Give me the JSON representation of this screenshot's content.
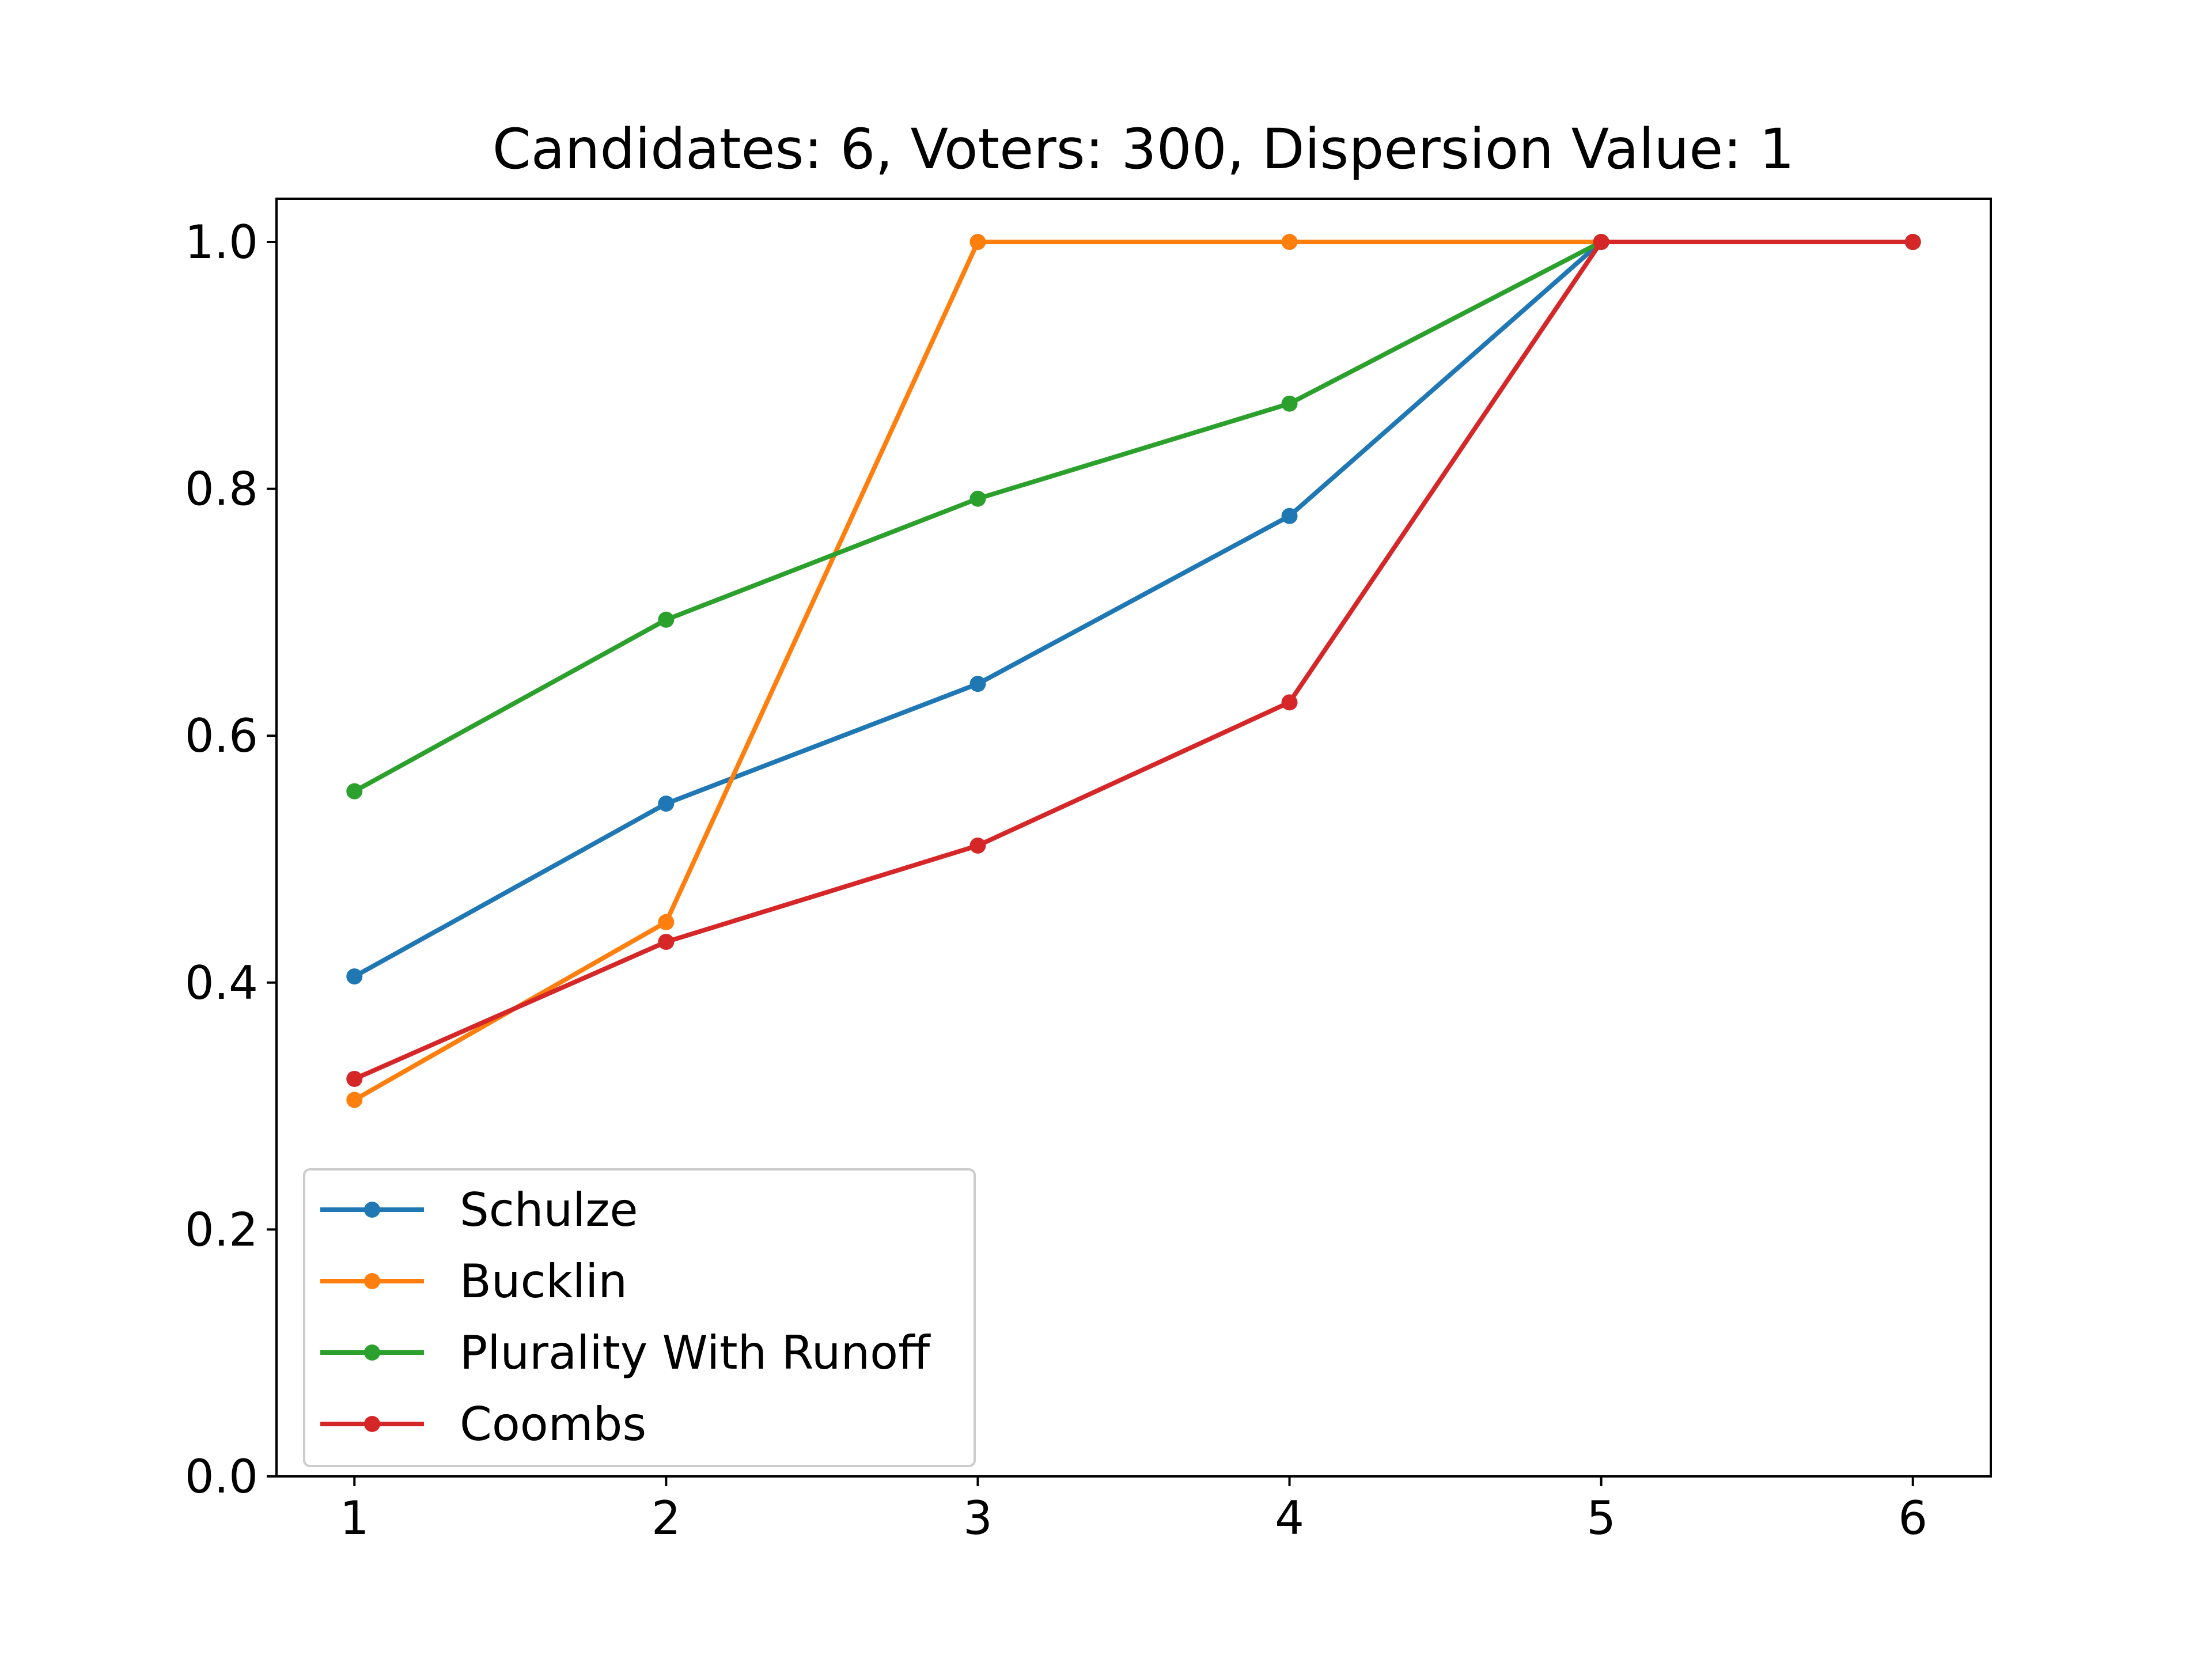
{
  "chart_data": {
    "type": "line",
    "title": "Candidates: 6, Voters: 300, Dispersion Value: 1",
    "xlabel": "",
    "ylabel": "",
    "x": [
      1,
      2,
      3,
      4,
      5,
      6
    ],
    "xlim": [
      0.75,
      6.25
    ],
    "ylim": [
      0.0,
      1.035
    ],
    "xticks": [
      "1",
      "2",
      "3",
      "4",
      "5",
      "6"
    ],
    "yticks": [
      "0.0",
      "0.2",
      "0.4",
      "0.6",
      "0.8",
      "1.0"
    ],
    "grid": false,
    "legend_position": "lower-left",
    "series": [
      {
        "name": "Schulze",
        "color": "#1f77b4",
        "values": [
          0.405,
          0.545,
          0.642,
          0.778,
          1.0,
          1.0
        ]
      },
      {
        "name": "Bucklin",
        "color": "#ff7f0e",
        "values": [
          0.305,
          0.449,
          1.0,
          1.0,
          1.0,
          1.0
        ]
      },
      {
        "name": "Plurality With Runoff",
        "color": "#2ca02c",
        "values": [
          0.555,
          0.694,
          0.792,
          0.869,
          1.0,
          1.0
        ]
      },
      {
        "name": "Coombs",
        "color": "#d62728",
        "values": [
          0.322,
          0.433,
          0.511,
          0.627,
          1.0,
          1.0
        ]
      }
    ]
  }
}
